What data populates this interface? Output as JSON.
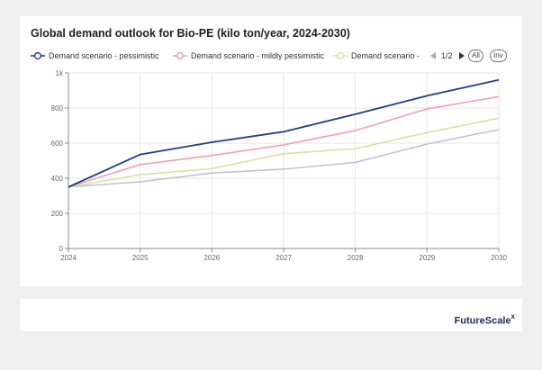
{
  "chart_data": {
    "type": "line",
    "title": "Global demand outlook for Bio-PE (kilo ton/year, 2024-2030)",
    "x": [
      2024,
      2025,
      2026,
      2027,
      2028,
      2029,
      2030
    ],
    "ylim": [
      0,
      1000
    ],
    "yticks": [
      "0",
      "200",
      "400",
      "600",
      "800",
      "1k"
    ],
    "grid": true,
    "legend_position": "top-left",
    "series": [
      {
        "name": "Demand scenario - pessimistic",
        "color": "#1d3f8a",
        "values": [
          350,
          535,
          605,
          665,
          765,
          870,
          960
        ]
      },
      {
        "name": "Demand scenario - mildly pessimistic",
        "color": "#f0a0b0",
        "values": [
          350,
          478,
          530,
          590,
          672,
          795,
          865
        ]
      },
      {
        "name": "Demand scenario - mi",
        "color": "#d8e2a0",
        "values": [
          350,
          420,
          455,
          540,
          568,
          660,
          742
        ]
      },
      {
        "name": "",
        "color": "#b8c6d6",
        "values": [
          350,
          380,
          430,
          452,
          490,
          595,
          677
        ]
      }
    ]
  },
  "legend": {
    "page_indicator": "1/2",
    "all_label": "All",
    "inv_label": "Inv"
  },
  "footer": {
    "brand": "FutureScale",
    "brand_mark": "x"
  }
}
